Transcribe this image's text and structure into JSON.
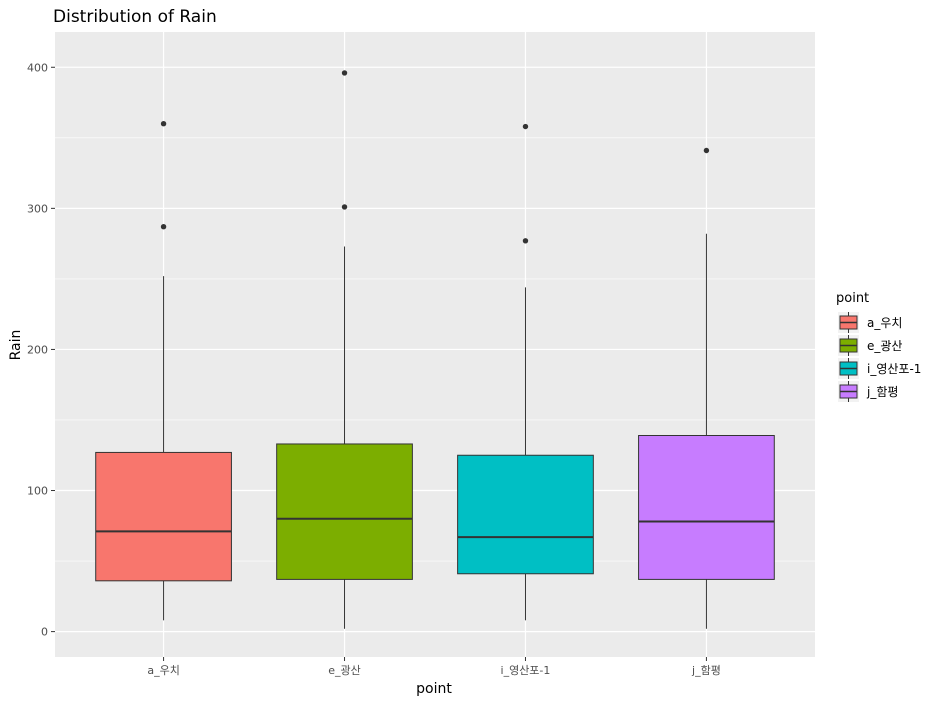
{
  "chart_data": {
    "type": "box",
    "title": "Distribution of Rain",
    "xlabel": "point",
    "ylabel": "Rain",
    "ylim": [
      -18,
      425
    ],
    "yticks": [
      0,
      100,
      200,
      300,
      400
    ],
    "grid": true,
    "legend": {
      "title": "point",
      "position": "right"
    },
    "series": [
      {
        "name": "a_우치",
        "color": "#F8766D",
        "whisker_low": 8,
        "q1": 36,
        "median": 71,
        "q3": 127,
        "whisker_high": 252,
        "outliers": [
          287,
          360
        ]
      },
      {
        "name": "e_광산",
        "color": "#7CAE00",
        "whisker_low": 2,
        "q1": 37,
        "median": 80,
        "q3": 133,
        "whisker_high": 273,
        "outliers": [
          301,
          396
        ]
      },
      {
        "name": "i_영산포-1",
        "color": "#00BFC4",
        "whisker_low": 8,
        "q1": 41,
        "median": 67,
        "q3": 125,
        "whisker_high": 244,
        "outliers": [
          277,
          358
        ]
      },
      {
        "name": "j_함평",
        "color": "#C77CFF",
        "whisker_low": 2,
        "q1": 37,
        "median": 78,
        "q3": 139,
        "whisker_high": 282,
        "outliers": [
          341
        ]
      }
    ]
  }
}
